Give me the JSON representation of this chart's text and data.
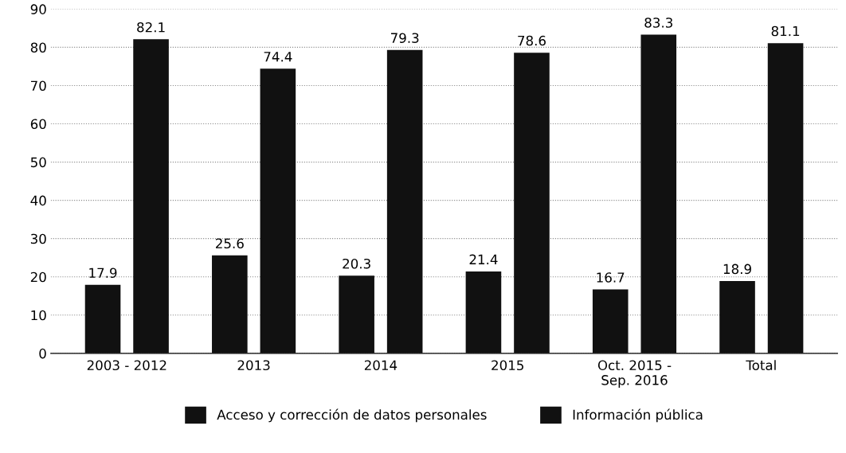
{
  "chart_data": {
    "type": "bar",
    "categories": [
      "2003 - 2012",
      "2013",
      "2014",
      "2015",
      "Oct. 2015 -\nSep. 2016",
      "Total"
    ],
    "series": [
      {
        "name": "Acceso y corrección de datos personales",
        "color": "#111111",
        "values": [
          17.9,
          25.6,
          20.3,
          21.4,
          16.7,
          18.9
        ]
      },
      {
        "name": "Información pública",
        "color": "#111111",
        "values": [
          82.1,
          74.4,
          79.3,
          78.6,
          83.3,
          81.1
        ]
      }
    ],
    "ylim": [
      0,
      90
    ],
    "yticks": [
      0,
      10,
      20,
      30,
      40,
      50,
      60,
      70,
      80,
      90
    ],
    "grid": "y",
    "legend": "bottom",
    "data_labels": true
  }
}
